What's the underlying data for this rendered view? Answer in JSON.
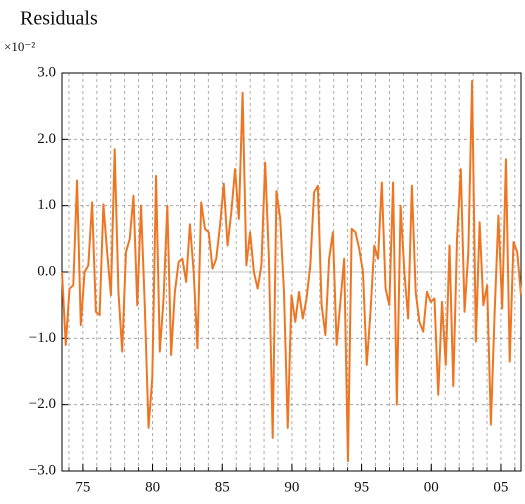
{
  "chart_data": {
    "type": "line",
    "title": "Residuals",
    "y_multiplier": "×10⁻²",
    "xlim": [
      1973.5,
      2006.44
    ],
    "ylim": [
      -3,
      3
    ],
    "xticks": [
      {
        "value": 1975,
        "label": "75"
      },
      {
        "value": 1980,
        "label": "80"
      },
      {
        "value": 1985,
        "label": "85"
      },
      {
        "value": 1990,
        "label": "90"
      },
      {
        "value": 1995,
        "label": "95"
      },
      {
        "value": 2000,
        "label": "00"
      },
      {
        "value": 2005,
        "label": "05"
      }
    ],
    "x_minor_ticks": [
      1974,
      1975,
      1976,
      1977,
      1978,
      1979,
      1980,
      1981,
      1982,
      1983,
      1984,
      1985,
      1986,
      1987,
      1988,
      1989,
      1990,
      1991,
      1992,
      1993,
      1994,
      1995,
      1996,
      1997,
      1998,
      1999,
      2000,
      2001,
      2002,
      2003,
      2004,
      2005,
      2006
    ],
    "yticks": [
      {
        "value": -3,
        "label": "−3.0"
      },
      {
        "value": -2,
        "label": "−2.0"
      },
      {
        "value": -1,
        "label": "−1.0"
      },
      {
        "value": 0,
        "label": "0.0"
      },
      {
        "value": 1,
        "label": "1.0"
      },
      {
        "value": 2,
        "label": "2.0"
      },
      {
        "value": 3,
        "label": "3.0"
      }
    ],
    "grid": true,
    "x": [
      1973.5,
      1973.77,
      1974.04,
      1974.31,
      1974.58,
      1974.85,
      1975.12,
      1975.39,
      1975.66,
      1975.93,
      1976.2,
      1976.47,
      1976.74,
      1977.01,
      1977.28,
      1977.55,
      1977.82,
      1978.09,
      1978.36,
      1978.63,
      1978.9,
      1979.17,
      1979.44,
      1979.71,
      1979.98,
      1980.25,
      1980.52,
      1980.79,
      1981.06,
      1981.33,
      1981.6,
      1981.87,
      1982.14,
      1982.41,
      1982.68,
      1982.95,
      1983.22,
      1983.49,
      1983.76,
      1984.03,
      1984.3,
      1984.57,
      1984.84,
      1985.11,
      1985.38,
      1985.65,
      1985.92,
      1986.19,
      1986.46,
      1986.73,
      1987.0,
      1987.27,
      1987.54,
      1987.81,
      1988.08,
      1988.35,
      1988.62,
      1988.89,
      1989.16,
      1989.43,
      1989.7,
      1989.97,
      1990.24,
      1990.51,
      1990.78,
      1991.05,
      1991.32,
      1991.59,
      1991.86,
      1992.13,
      1992.4,
      1992.67,
      1992.94,
      1993.21,
      1993.48,
      1993.75,
      1994.02,
      1994.29,
      1994.56,
      1994.83,
      1995.1,
      1995.37,
      1995.64,
      1995.91,
      1996.18,
      1996.45,
      1996.72,
      1996.99,
      1997.26,
      1997.53,
      1997.8,
      1998.07,
      1998.34,
      1998.61,
      1998.88,
      1999.15,
      1999.42,
      1999.69,
      1999.96,
      2000.23,
      2000.5,
      2000.77,
      2001.04,
      2001.31,
      2001.58,
      2001.85,
      2002.12,
      2002.39,
      2002.66,
      2002.93,
      2003.2,
      2003.47,
      2003.74,
      2004.01,
      2004.28,
      2004.55,
      2004.82,
      2005.09,
      2005.36,
      2005.63,
      2005.9,
      2006.17,
      2006.44
    ],
    "series": [
      {
        "color": "#ee7623",
        "values": [
          0.0,
          -1.1,
          -0.25,
          -0.2,
          1.38,
          -0.8,
          0.0,
          0.1,
          1.05,
          -0.6,
          -0.65,
          1.02,
          0.3,
          -0.35,
          1.85,
          -0.3,
          -1.2,
          0.3,
          0.5,
          1.15,
          -0.5,
          1.0,
          -0.5,
          -2.35,
          -1.6,
          1.45,
          -1.2,
          -0.4,
          1.0,
          -1.25,
          -0.3,
          0.15,
          0.2,
          -0.15,
          0.72,
          0.0,
          -1.15,
          1.05,
          0.65,
          0.6,
          0.05,
          0.2,
          0.7,
          1.33,
          0.4,
          0.9,
          1.55,
          0.8,
          2.7,
          0.1,
          0.6,
          0.0,
          -0.25,
          0.1,
          1.65,
          0.2,
          -2.5,
          1.22,
          0.8,
          -0.3,
          -2.35,
          -0.35,
          -0.75,
          -0.3,
          -0.7,
          -0.4,
          0.1,
          1.2,
          1.3,
          -0.5,
          -0.95,
          0.2,
          0.6,
          -1.1,
          -0.45,
          0.2,
          -2.85,
          0.65,
          0.6,
          0.35,
          0.0,
          -1.4,
          -0.6,
          0.4,
          0.2,
          1.35,
          -0.25,
          -0.5,
          1.35,
          -2.0,
          1.0,
          0.0,
          -0.7,
          1.3,
          -0.3,
          -0.75,
          -0.9,
          -0.3,
          -0.45,
          -0.4,
          -1.85,
          -0.45,
          -1.4,
          0.4,
          -1.72,
          0.5,
          1.55,
          -0.6,
          0.3,
          2.88,
          -1.05,
          0.75,
          -0.5,
          -0.2,
          -2.3,
          -0.6,
          0.85,
          -0.55,
          1.7,
          -1.35,
          0.45,
          0.3,
          -0.35
        ]
      }
    ]
  }
}
